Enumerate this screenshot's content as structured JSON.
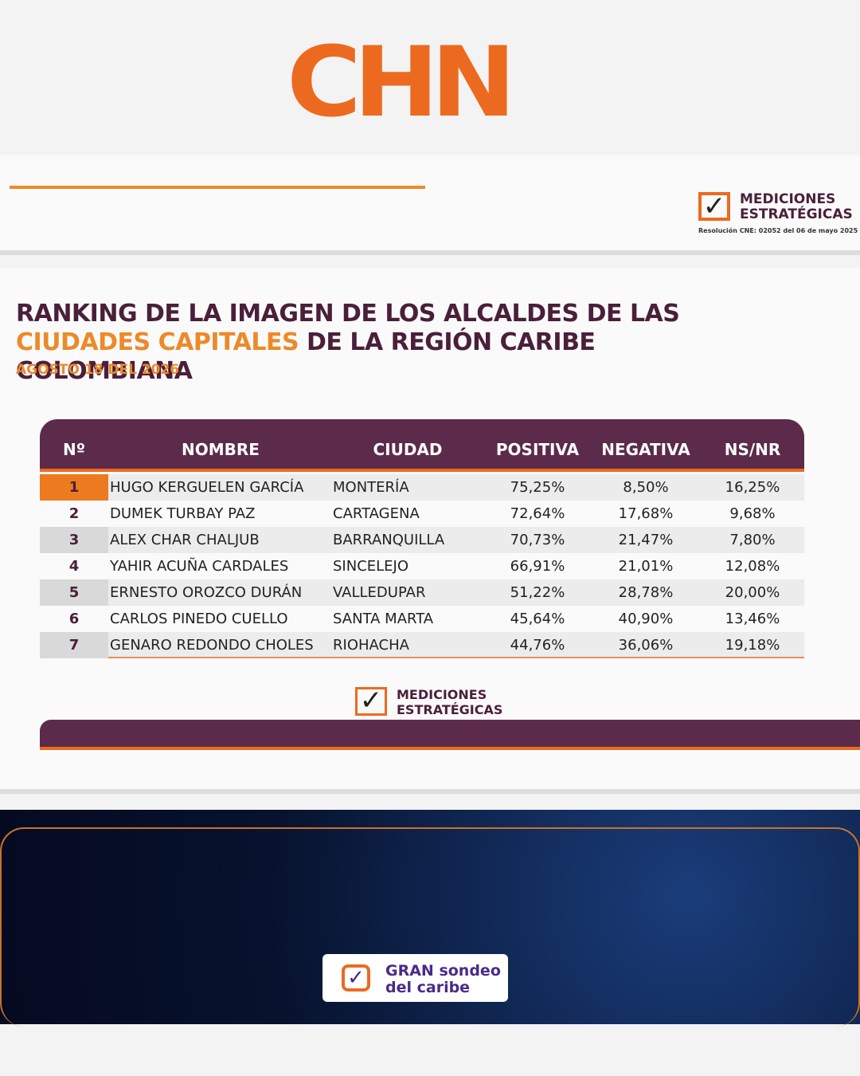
{
  "logo": {
    "text": "CHN"
  },
  "top_brand": {
    "line1": "MEDICIONES",
    "line2": "ESTRATÉGICAS",
    "resolution": "Resolución CNE: 02052 del 06 de mayo 2025"
  },
  "header": {
    "title": [
      "RANKING DE LA IMAGEN DE LOS ALCALDES DE LAS",
      "CIUDADES CAPITALES",
      "DE LA REGIÓN CARIBE COLOMBIANA"
    ],
    "date": "AGOSTO 18 DEL 2026"
  },
  "table": {
    "columns": [
      "Nº",
      "NOMBRE",
      "CIUDAD",
      "POSITIVA",
      "NEGATIVA",
      "NS/NR"
    ],
    "rows": [
      [
        "1",
        "HUGO KERGUELEN GARCÍA",
        "MONTERÍA",
        "75,25%",
        "8,50%",
        "16,25%"
      ],
      [
        "2",
        "DUMEK TURBAY PAZ",
        "CARTAGENA",
        "72,64%",
        "17,68%",
        "9,68%"
      ],
      [
        "3",
        "ALEX CHAR CHALJUB",
        "BARRANQUILLA",
        "70,73%",
        "21,47%",
        "7,80%"
      ],
      [
        "4",
        "YAHIR ACUÑA CARDALES",
        "SINCELEJO",
        "66,91%",
        "21,01%",
        "12,08%"
      ],
      [
        "5",
        "ERNESTO OROZCO DURÁN",
        "VALLEDUPAR",
        "51,22%",
        "28,78%",
        "20,00%"
      ],
      [
        "6",
        "CARLOS PINEDO CUELLO",
        "SANTA MARTA",
        "45,64%",
        "40,90%",
        "13,46%"
      ],
      [
        "7",
        "GENARO REDONDO CHOLES",
        "RIOHACHA",
        "44,76%",
        "36,06%",
        "19,18%"
      ]
    ]
  },
  "footer_brand": {
    "line1": "MEDICIONES",
    "line2": "ESTRATÉGICAS"
  },
  "badge": {
    "line1": "GRAN sondeo",
    "line2": "del caribe"
  }
}
